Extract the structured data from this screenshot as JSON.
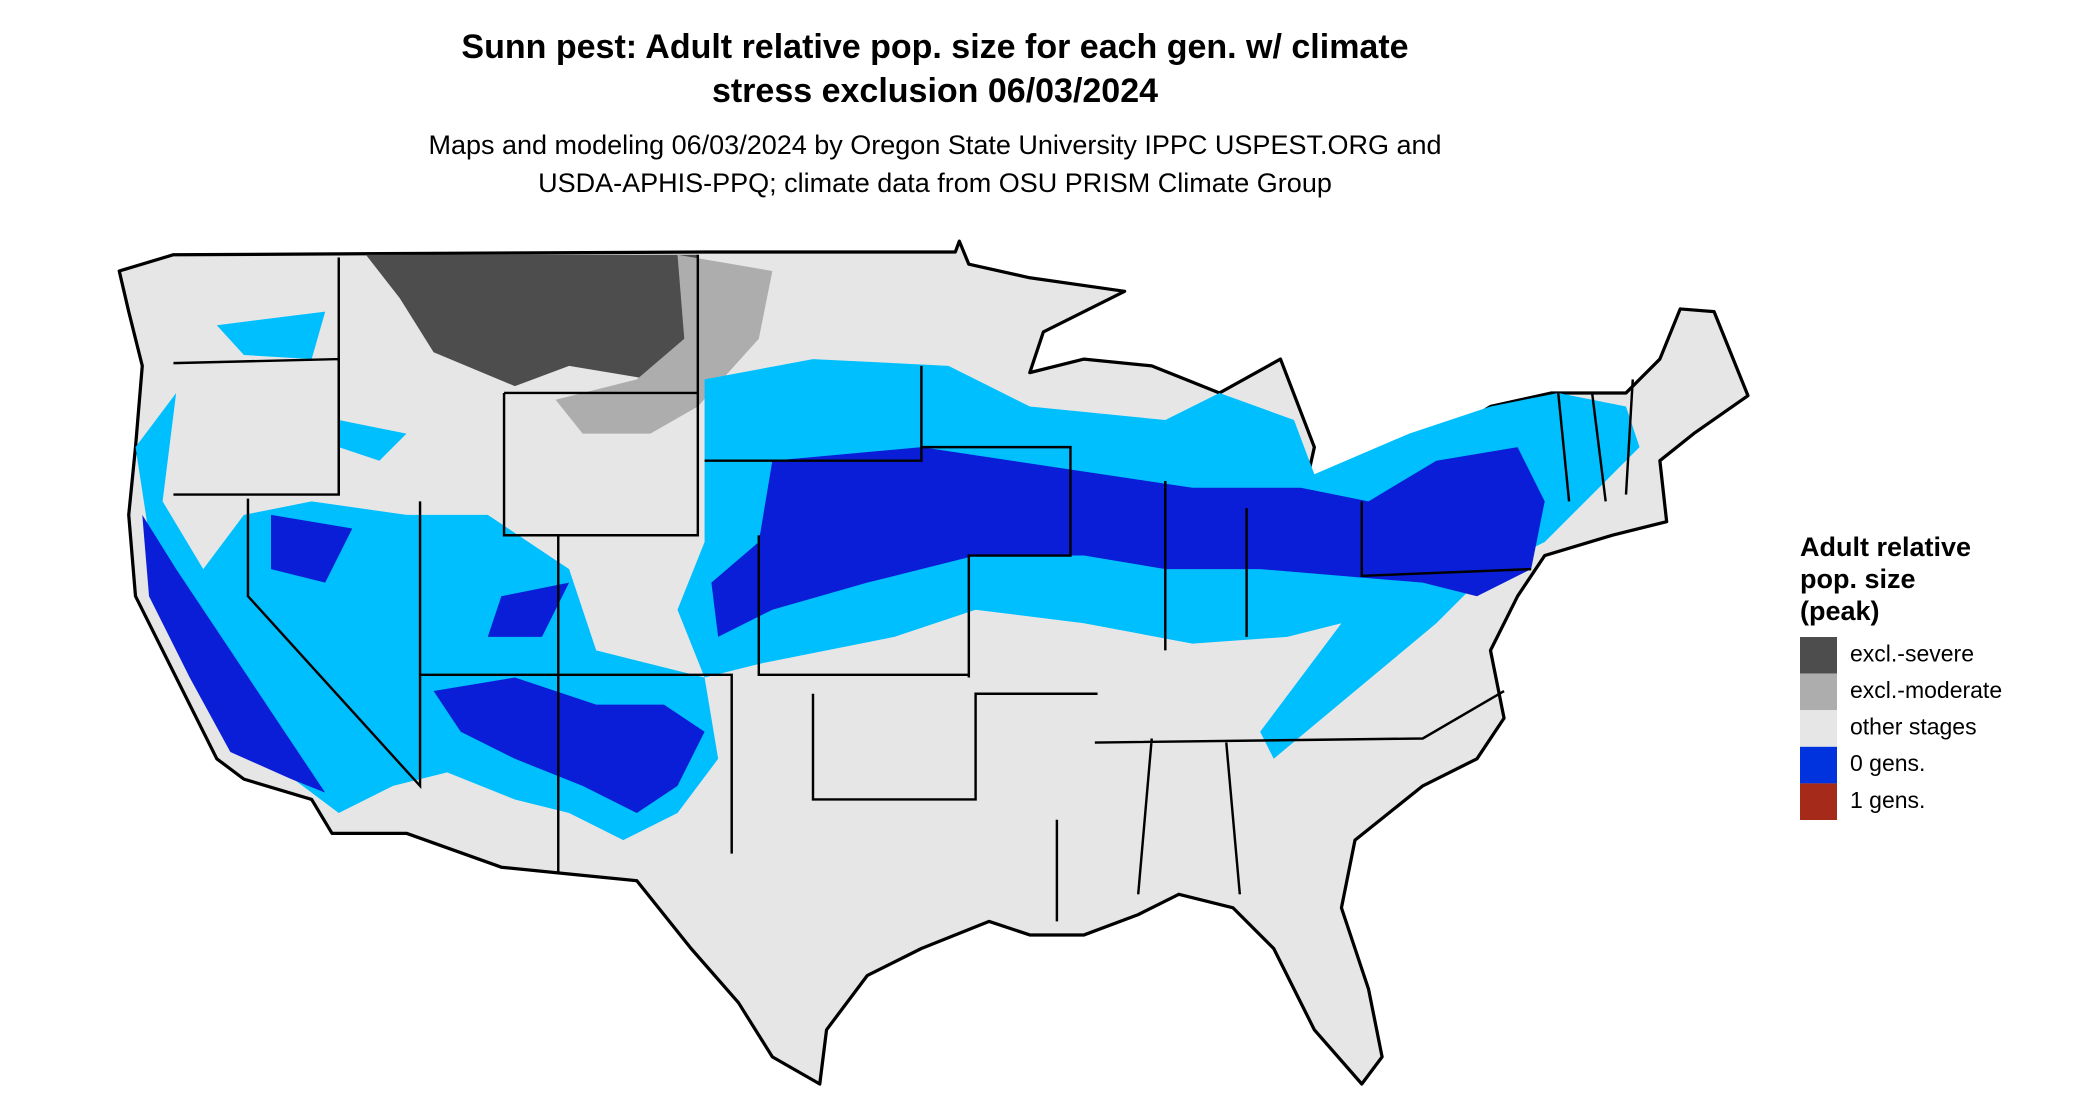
{
  "title": [
    "Sunn pest: Adult relative pop. size for each gen. w/ climate",
    "stress exclusion 06/03/2024"
  ],
  "subtitle": [
    "Maps and modeling 06/03/2024 by Oregon State University IPPC USPEST.ORG and",
    "USDA-APHIS-PPQ; climate data from OSU PRISM Climate Group"
  ],
  "legend": {
    "title": [
      "Adult relative",
      "pop. size",
      "(peak)"
    ],
    "items": [
      {
        "label": "excl.-severe",
        "color": "#4d4d4d"
      },
      {
        "label": "excl.-moderate",
        "color": "#adadad"
      },
      {
        "label": "other stages",
        "color": "#e6e6e6"
      },
      {
        "label": "0 gens.",
        "color": "#0033dd"
      },
      {
        "label": "1 gens.",
        "color": "#a52a1a"
      }
    ]
  }
}
